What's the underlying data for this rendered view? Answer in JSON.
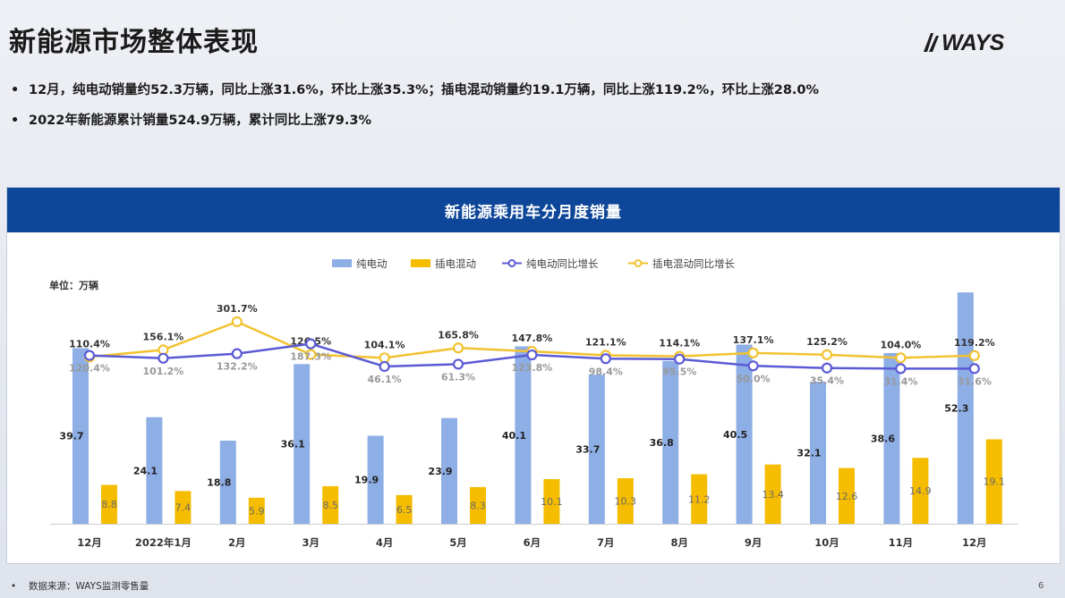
{
  "header": {
    "title": "新能源市场整体表现",
    "logo_text": "WAYS"
  },
  "bullets": [
    "12月，纯电动销量约52.3万辆，同比上涨31.6%，环比上涨35.3%；插电混动销量约19.1万辆，同比上涨119.2%，环比上涨28.0%",
    "2022年新能源累计销量524.9万辆，累计同比上涨79.3%"
  ],
  "footer": {
    "source": "数据来源：WAYS监测零售量",
    "page_number": "6"
  },
  "colors": {
    "header_bg": "#0e4799",
    "bev_bar": "#8eaee6",
    "phev_bar": "#f5bc00",
    "bev_line": "#5b5bd6",
    "phev_line": "#f2c230"
  },
  "chart_data": {
    "type": "bar",
    "title": "新能源乘用车分月度销量",
    "unit_label": "单位：万辆",
    "categories": [
      "12月",
      "2022年1月",
      "2月",
      "3月",
      "4月",
      "5月",
      "6月",
      "7月",
      "8月",
      "9月",
      "10月",
      "11月",
      "12月"
    ],
    "series": [
      {
        "name": "纯电动",
        "kind": "bar",
        "values": [
          39.7,
          24.1,
          18.8,
          36.1,
          19.9,
          23.9,
          40.1,
          33.7,
          36.8,
          40.5,
          32.1,
          38.6,
          52.3
        ]
      },
      {
        "name": "插电混动",
        "kind": "bar",
        "values": [
          8.8,
          7.4,
          5.9,
          8.5,
          6.5,
          8.3,
          10.1,
          10.3,
          11.2,
          13.4,
          12.6,
          14.9,
          19.1
        ]
      },
      {
        "name": "纯电动同比增长",
        "kind": "line",
        "values": [
          120.4,
          101.2,
          132.2,
          187.3,
          46.1,
          61.3,
          123.8,
          98.4,
          95.5,
          50.0,
          35.4,
          31.4,
          31.6
        ]
      },
      {
        "name": "插电混动同比增长",
        "kind": "line",
        "values": [
          110.4,
          156.1,
          301.7,
          126.5,
          104.1,
          165.8,
          147.8,
          121.1,
          114.1,
          137.1,
          125.2,
          104.0,
          119.2
        ]
      }
    ],
    "legend_position": "top-center",
    "grid": false
  }
}
